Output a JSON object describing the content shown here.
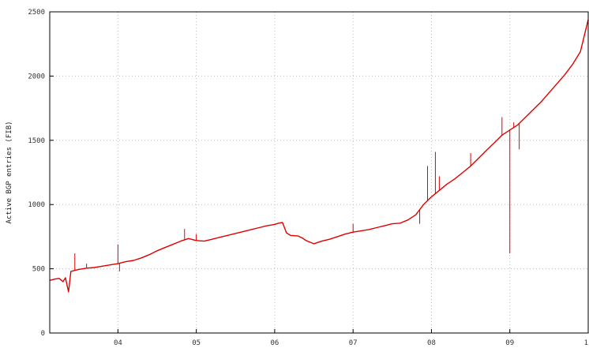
{
  "chart_data": {
    "type": "line",
    "ylabel": "Active BGP entries (FIB)",
    "xlabel": "",
    "title": "",
    "x_ticks": [
      {
        "label": "04",
        "x": 2004.0
      },
      {
        "label": "05",
        "x": 2005.0
      },
      {
        "label": "06",
        "x": 2006.0
      },
      {
        "label": "07",
        "x": 2007.0
      },
      {
        "label": "08",
        "x": 2008.0
      },
      {
        "label": "09",
        "x": 2009.0
      },
      {
        "label": "1",
        "x": 2010.0
      }
    ],
    "y_ticks": [
      0,
      500,
      1000,
      1500,
      2000,
      2500
    ],
    "xlim": [
      2003.13,
      2010.0
    ],
    "ylim": [
      0,
      2500
    ],
    "grid": true,
    "line_color": "#e00000",
    "series": [
      {
        "values": [
          [
            2003.13,
            410
          ],
          [
            2003.2,
            420
          ],
          [
            2003.25,
            425
          ],
          [
            2003.3,
            400
          ],
          [
            2003.33,
            430
          ],
          [
            2003.37,
            320
          ],
          [
            2003.4,
            480
          ],
          [
            2003.5,
            495
          ],
          [
            2003.6,
            505
          ],
          [
            2003.7,
            510
          ],
          [
            2003.8,
            520
          ],
          [
            2003.9,
            530
          ],
          [
            2004.0,
            540
          ],
          [
            2004.1,
            555
          ],
          [
            2004.2,
            565
          ],
          [
            2004.3,
            585
          ],
          [
            2004.4,
            610
          ],
          [
            2004.5,
            640
          ],
          [
            2004.6,
            665
          ],
          [
            2004.7,
            690
          ],
          [
            2004.8,
            715
          ],
          [
            2004.9,
            735
          ],
          [
            2005.0,
            720
          ],
          [
            2005.1,
            715
          ],
          [
            2005.2,
            730
          ],
          [
            2005.3,
            745
          ],
          [
            2005.4,
            760
          ],
          [
            2005.5,
            775
          ],
          [
            2005.6,
            790
          ],
          [
            2005.7,
            805
          ],
          [
            2005.8,
            820
          ],
          [
            2005.9,
            835
          ],
          [
            2006.0,
            845
          ],
          [
            2006.05,
            855
          ],
          [
            2006.1,
            860
          ],
          [
            2006.15,
            780
          ],
          [
            2006.2,
            760
          ],
          [
            2006.3,
            755
          ],
          [
            2006.35,
            740
          ],
          [
            2006.4,
            720
          ],
          [
            2006.5,
            695
          ],
          [
            2006.6,
            715
          ],
          [
            2006.7,
            730
          ],
          [
            2006.8,
            750
          ],
          [
            2006.9,
            770
          ],
          [
            2007.0,
            785
          ],
          [
            2007.1,
            795
          ],
          [
            2007.2,
            805
          ],
          [
            2007.3,
            820
          ],
          [
            2007.4,
            835
          ],
          [
            2007.5,
            850
          ],
          [
            2007.6,
            855
          ],
          [
            2007.7,
            880
          ],
          [
            2007.8,
            920
          ],
          [
            2007.9,
            1000
          ],
          [
            2008.0,
            1060
          ],
          [
            2008.1,
            1110
          ],
          [
            2008.2,
            1160
          ],
          [
            2008.3,
            1200
          ],
          [
            2008.4,
            1250
          ],
          [
            2008.5,
            1300
          ],
          [
            2008.6,
            1360
          ],
          [
            2008.7,
            1420
          ],
          [
            2008.8,
            1480
          ],
          [
            2008.9,
            1540
          ],
          [
            2009.0,
            1580
          ],
          [
            2009.1,
            1620
          ],
          [
            2009.2,
            1680
          ],
          [
            2009.3,
            1740
          ],
          [
            2009.4,
            1800
          ],
          [
            2009.5,
            1870
          ],
          [
            2009.6,
            1940
          ],
          [
            2009.7,
            2010
          ],
          [
            2009.8,
            2090
          ],
          [
            2009.9,
            2190
          ],
          [
            2010.0,
            2440
          ]
        ]
      }
    ],
    "spikes": [
      [
        2003.45,
        620
      ],
      [
        2003.6,
        540
      ],
      [
        2004.0,
        690
      ],
      [
        2004.02,
        480
      ],
      [
        2004.85,
        810
      ],
      [
        2005.0,
        770
      ],
      [
        2007.0,
        850
      ],
      [
        2007.85,
        850
      ],
      [
        2007.95,
        1300
      ],
      [
        2008.05,
        1410
      ],
      [
        2008.1,
        1220
      ],
      [
        2008.5,
        1400
      ],
      [
        2008.9,
        1680
      ],
      [
        2009.0,
        620
      ],
      [
        2009.12,
        1430
      ],
      [
        2009.05,
        1640
      ],
      [
        2010.0,
        2500
      ]
    ]
  }
}
